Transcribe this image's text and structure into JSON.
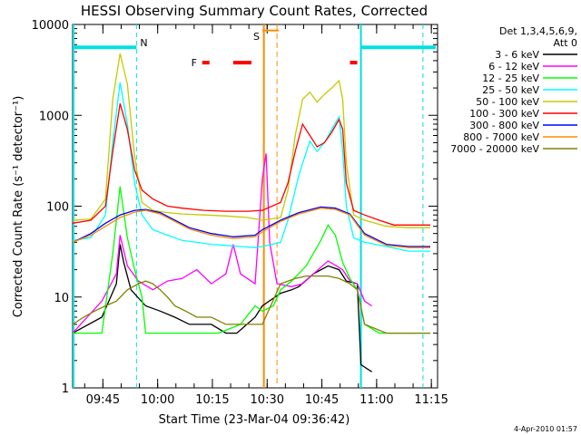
{
  "chart_data": {
    "type": "line",
    "title": "HESSI Observing Summary Count Rates, Corrected",
    "xlabel": "Start Time (23-Mar-04 09:36:42)",
    "ylabel": "Corrected Count Rate (s⁻¹ detector⁻¹)",
    "yscale": "log",
    "ylim": [
      1,
      10000
    ],
    "xlim_minutes": [
      0,
      100
    ],
    "xticks": [
      {
        "label": "09:45",
        "t": 8.3
      },
      {
        "label": "10:00",
        "t": 23.3
      },
      {
        "label": "10:15",
        "t": 38.3
      },
      {
        "label": "10:30",
        "t": 53.3
      },
      {
        "label": "10:45",
        "t": 68.3
      },
      {
        "label": "11:00",
        "t": 83.3
      },
      {
        "label": "11:15",
        "t": 98.3
      }
    ],
    "yticks": [
      {
        "label": "1",
        "v": 1
      },
      {
        "label": "10",
        "v": 10
      },
      {
        "label": "100",
        "v": 100
      },
      {
        "label": "1000",
        "v": 1000
      },
      {
        "label": "10000",
        "v": 10000
      }
    ],
    "legend": {
      "header1": "Det 1,3,4,5,6,9,",
      "header2": "Att 0",
      "position": "right"
    },
    "footer_date": "4-Apr-2010 01:57",
    "annotations": {
      "night_label": "N",
      "saa_label": "S",
      "flare_label": "F"
    },
    "series": [
      {
        "name": "3 - 6 keV",
        "color": "#000000",
        "values": [
          [
            0,
            4
          ],
          [
            8,
            6
          ],
          [
            12,
            14
          ],
          [
            13,
            38
          ],
          [
            14,
            24
          ],
          [
            16,
            12
          ],
          [
            20,
            8
          ],
          [
            24,
            7
          ],
          [
            28,
            6
          ],
          [
            32,
            5
          ],
          [
            38,
            5
          ],
          [
            42,
            4
          ],
          [
            45,
            4
          ],
          [
            50,
            6
          ],
          [
            52,
            8
          ],
          [
            57,
            11
          ],
          [
            60,
            12
          ],
          [
            62,
            13
          ],
          [
            66,
            18
          ],
          [
            70,
            22
          ],
          [
            73,
            20
          ],
          [
            75,
            15
          ],
          [
            78,
            14
          ],
          [
            79,
            1.8
          ],
          [
            82,
            1.5
          ]
        ]
      },
      {
        "name": "6 - 12 keV",
        "color": "#ff00ff",
        "values": [
          [
            0,
            4
          ],
          [
            8,
            9
          ],
          [
            12,
            18
          ],
          [
            13,
            48
          ],
          [
            15,
            22
          ],
          [
            18,
            15
          ],
          [
            22,
            12
          ],
          [
            26,
            15
          ],
          [
            30,
            16
          ],
          [
            34,
            20
          ],
          [
            38,
            14
          ],
          [
            42,
            18
          ],
          [
            44,
            38
          ],
          [
            46,
            18
          ],
          [
            50,
            14
          ],
          [
            52,
            200
          ],
          [
            53,
            380
          ],
          [
            54,
            40
          ],
          [
            56,
            14
          ],
          [
            60,
            13
          ],
          [
            63,
            14
          ],
          [
            66,
            18
          ],
          [
            70,
            25
          ],
          [
            74,
            20
          ],
          [
            76,
            15
          ],
          [
            78,
            14
          ],
          [
            80,
            9
          ],
          [
            82,
            8
          ]
        ]
      },
      {
        "name": "12 - 25 keV",
        "color": "#00ff00",
        "values": [
          [
            0,
            4
          ],
          [
            8,
            4
          ],
          [
            11,
            30
          ],
          [
            13,
            165
          ],
          [
            15,
            45
          ],
          [
            17,
            20
          ],
          [
            19,
            10
          ],
          [
            20,
            4
          ],
          [
            24,
            4
          ],
          [
            28,
            4
          ],
          [
            34,
            4
          ],
          [
            40,
            4
          ],
          [
            46,
            5
          ],
          [
            50,
            8
          ],
          [
            52,
            7
          ],
          [
            55,
            8
          ],
          [
            57,
            12
          ],
          [
            60,
            15
          ],
          [
            64,
            22
          ],
          [
            68,
            42
          ],
          [
            70,
            62
          ],
          [
            72,
            48
          ],
          [
            74,
            24
          ],
          [
            76,
            16
          ],
          [
            78,
            12
          ],
          [
            80,
            5
          ],
          [
            84,
            4
          ],
          [
            98,
            4
          ]
        ]
      },
      {
        "name": "25 - 50 keV",
        "color": "#00ffff",
        "values": [
          [
            0,
            42
          ],
          [
            5,
            45
          ],
          [
            9,
            80
          ],
          [
            11,
            500
          ],
          [
            13,
            2300
          ],
          [
            15,
            800
          ],
          [
            17,
            180
          ],
          [
            19,
            80
          ],
          [
            22,
            55
          ],
          [
            26,
            48
          ],
          [
            30,
            42
          ],
          [
            34,
            40
          ],
          [
            38,
            38
          ],
          [
            42,
            37
          ],
          [
            46,
            36
          ],
          [
            50,
            35
          ],
          [
            52,
            36
          ],
          [
            57,
            40
          ],
          [
            59,
            70
          ],
          [
            62,
            220
          ],
          [
            65,
            520
          ],
          [
            67,
            400
          ],
          [
            69,
            500
          ],
          [
            71,
            700
          ],
          [
            73,
            960
          ],
          [
            74,
            400
          ],
          [
            75,
            100
          ],
          [
            77,
            45
          ],
          [
            80,
            40
          ],
          [
            86,
            36
          ],
          [
            92,
            32
          ],
          [
            98,
            32
          ]
        ]
      },
      {
        "name": "50 - 100 keV",
        "color": "#c8c800",
        "values": [
          [
            0,
            70
          ],
          [
            5,
            72
          ],
          [
            9,
            120
          ],
          [
            11,
            1500
          ],
          [
            13,
            4800
          ],
          [
            15,
            2200
          ],
          [
            17,
            350
          ],
          [
            19,
            110
          ],
          [
            22,
            90
          ],
          [
            26,
            85
          ],
          [
            30,
            82
          ],
          [
            36,
            80
          ],
          [
            42,
            78
          ],
          [
            48,
            75
          ],
          [
            52,
            70
          ],
          [
            57,
            75
          ],
          [
            59,
            150
          ],
          [
            61,
            600
          ],
          [
            63,
            1500
          ],
          [
            65,
            1800
          ],
          [
            67,
            1400
          ],
          [
            69,
            1700
          ],
          [
            71,
            2000
          ],
          [
            73,
            2400
          ],
          [
            74,
            1500
          ],
          [
            75,
            300
          ],
          [
            77,
            80
          ],
          [
            80,
            70
          ],
          [
            86,
            60
          ],
          [
            92,
            58
          ],
          [
            98,
            58
          ]
        ]
      },
      {
        "name": "100 - 300 keV",
        "color": "#ff0000",
        "values": [
          [
            0,
            65
          ],
          [
            5,
            70
          ],
          [
            9,
            100
          ],
          [
            11,
            400
          ],
          [
            13,
            1350
          ],
          [
            15,
            700
          ],
          [
            17,
            250
          ],
          [
            19,
            150
          ],
          [
            22,
            120
          ],
          [
            26,
            100
          ],
          [
            30,
            95
          ],
          [
            36,
            90
          ],
          [
            42,
            88
          ],
          [
            48,
            88
          ],
          [
            52,
            90
          ],
          [
            57,
            110
          ],
          [
            59,
            180
          ],
          [
            61,
            400
          ],
          [
            63,
            800
          ],
          [
            65,
            600
          ],
          [
            67,
            450
          ],
          [
            69,
            500
          ],
          [
            71,
            650
          ],
          [
            73,
            900
          ],
          [
            74,
            700
          ],
          [
            75,
            180
          ],
          [
            77,
            90
          ],
          [
            80,
            80
          ],
          [
            84,
            70
          ],
          [
            88,
            62
          ],
          [
            92,
            62
          ],
          [
            98,
            62
          ]
        ]
      },
      {
        "name": "300 - 800 keV",
        "color": "#0000ff",
        "values": [
          [
            0,
            40
          ],
          [
            5,
            50
          ],
          [
            9,
            65
          ],
          [
            13,
            80
          ],
          [
            17,
            90
          ],
          [
            20,
            92
          ],
          [
            24,
            85
          ],
          [
            28,
            70
          ],
          [
            32,
            58
          ],
          [
            38,
            50
          ],
          [
            44,
            46
          ],
          [
            50,
            48
          ],
          [
            52,
            55
          ],
          [
            57,
            70
          ],
          [
            62,
            85
          ],
          [
            68,
            98
          ],
          [
            72,
            95
          ],
          [
            76,
            82
          ],
          [
            80,
            50
          ],
          [
            86,
            38
          ],
          [
            92,
            36
          ],
          [
            98,
            36
          ]
        ]
      },
      {
        "name": "800 - 7000 keV",
        "color": "#ff8c00",
        "values": [
          [
            0,
            40
          ],
          [
            5,
            48
          ],
          [
            9,
            60
          ],
          [
            13,
            75
          ],
          [
            17,
            86
          ],
          [
            20,
            90
          ],
          [
            24,
            82
          ],
          [
            28,
            68
          ],
          [
            32,
            56
          ],
          [
            38,
            48
          ],
          [
            44,
            44
          ],
          [
            50,
            46
          ],
          [
            52,
            52
          ],
          [
            57,
            68
          ],
          [
            62,
            82
          ],
          [
            68,
            95
          ],
          [
            72,
            92
          ],
          [
            76,
            80
          ],
          [
            80,
            48
          ],
          [
            86,
            37
          ],
          [
            92,
            35
          ],
          [
            98,
            35
          ]
        ]
      },
      {
        "name": "7000 - 20000 keV",
        "color": "#808000",
        "values": [
          [
            0,
            5
          ],
          [
            3,
            6
          ],
          [
            6,
            7
          ],
          [
            9,
            8
          ],
          [
            12,
            9
          ],
          [
            15,
            12
          ],
          [
            18,
            14
          ],
          [
            20,
            15
          ],
          [
            22,
            14
          ],
          [
            24,
            12
          ],
          [
            26,
            10
          ],
          [
            28,
            8
          ],
          [
            31,
            7
          ],
          [
            34,
            6
          ],
          [
            38,
            6
          ],
          [
            42,
            5
          ],
          [
            46,
            5
          ],
          [
            50,
            5
          ],
          [
            52,
            5
          ],
          [
            57,
            14
          ],
          [
            61,
            16
          ],
          [
            64,
            17
          ],
          [
            67,
            17
          ],
          [
            70,
            17
          ],
          [
            73,
            16
          ],
          [
            76,
            14
          ],
          [
            78,
            12
          ],
          [
            80,
            5
          ],
          [
            86,
            4
          ],
          [
            92,
            4
          ],
          [
            98,
            4
          ]
        ]
      }
    ]
  }
}
